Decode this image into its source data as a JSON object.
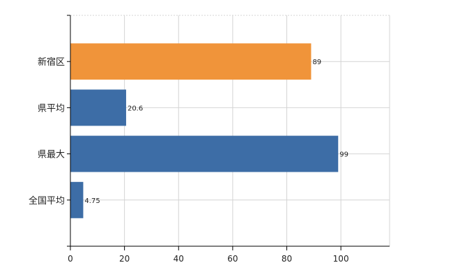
{
  "chart_data": {
    "type": "bar",
    "orientation": "horizontal",
    "categories": [
      "新宿区",
      "県平均",
      "県最大",
      "全国平均"
    ],
    "values": [
      89,
      20.6,
      99,
      4.75
    ],
    "value_labels": [
      "89",
      "20.6",
      "99",
      "4.75"
    ],
    "bar_colors": [
      "#F0943A",
      "#3D6DA6",
      "#3D6DA6",
      "#3D6DA6"
    ],
    "xlim": [
      0,
      118
    ],
    "x_ticks": [
      0,
      20,
      40,
      60,
      80,
      100
    ],
    "x_tick_labels": [
      "0",
      "20",
      "40",
      "60",
      "80",
      "100"
    ],
    "grid": true,
    "legend": false
  }
}
